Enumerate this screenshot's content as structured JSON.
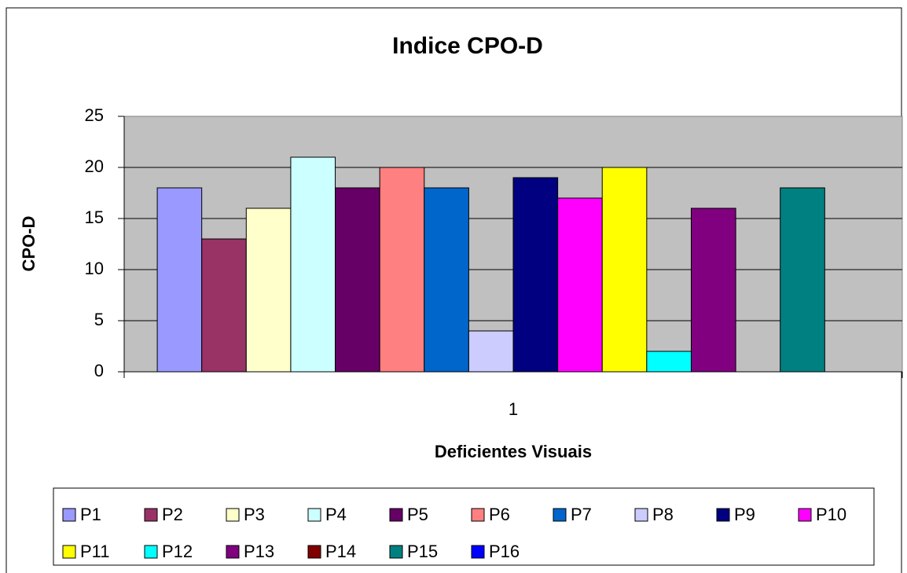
{
  "chart_data": {
    "type": "bar",
    "title": "Indice CPO-D",
    "x_label": "Deficientes Visuais",
    "y_label": "CPO-D",
    "categories": [
      "1"
    ],
    "series": [
      {
        "name": "P1",
        "color": "#9999ff",
        "values": [
          18
        ]
      },
      {
        "name": "P2",
        "color": "#993366",
        "values": [
          13
        ]
      },
      {
        "name": "P3",
        "color": "#ffffcc",
        "values": [
          16
        ]
      },
      {
        "name": "P4",
        "color": "#ccffff",
        "values": [
          21
        ]
      },
      {
        "name": "P5",
        "color": "#660066",
        "values": [
          18
        ]
      },
      {
        "name": "P6",
        "color": "#ff8080",
        "values": [
          20
        ]
      },
      {
        "name": "P7",
        "color": "#0066cc",
        "values": [
          18
        ]
      },
      {
        "name": "P8",
        "color": "#ccccff",
        "values": [
          4
        ]
      },
      {
        "name": "P9",
        "color": "#000080",
        "values": [
          19
        ]
      },
      {
        "name": "P10",
        "color": "#ff00ff",
        "values": [
          17
        ]
      },
      {
        "name": "P11",
        "color": "#ffff00",
        "values": [
          20
        ]
      },
      {
        "name": "P12",
        "color": "#00ffff",
        "values": [
          2
        ]
      },
      {
        "name": "P13",
        "color": "#800080",
        "values": [
          16
        ]
      },
      {
        "name": "P14",
        "color": "#800000",
        "values": [
          0
        ]
      },
      {
        "name": "P15",
        "color": "#008080",
        "values": [
          18
        ]
      },
      {
        "name": "P16",
        "color": "#0000ff",
        "values": [
          0
        ]
      }
    ],
    "ylim": [
      0,
      25
    ],
    "yticks": [
      0,
      5,
      10,
      15,
      20,
      25
    ],
    "grid": true,
    "legend": "bottom"
  }
}
